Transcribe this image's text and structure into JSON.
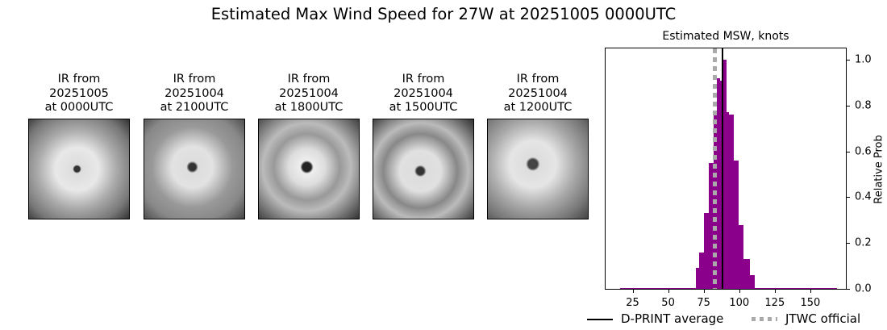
{
  "title": "Estimated Max Wind Speed for 27W at 20251005 0000UTC",
  "panels": [
    {
      "caption": "IR from\n20251005\nat 0000UTC"
    },
    {
      "caption": "IR from\n20251004\nat 2100UTC"
    },
    {
      "caption": "IR from\n20251004\nat 1800UTC"
    },
    {
      "caption": "IR from\n20251004\nat 1500UTC"
    },
    {
      "caption": "IR from\n20251004\nat 1200UTC"
    }
  ],
  "chart_data": {
    "type": "bar",
    "title": "Estimated MSW, knots",
    "xlabel": "",
    "ylabel": "Relative Prob",
    "xlim": [
      6,
      175
    ],
    "ylim": [
      0,
      1.05
    ],
    "xticks": [
      25,
      50,
      75,
      100,
      125,
      150
    ],
    "yticks": [
      "0.0",
      "0.2",
      "0.4",
      "0.6",
      "0.8",
      "1.0"
    ],
    "bins": [
      {
        "x0": 16,
        "x1": 69.6,
        "value": 0.003
      },
      {
        "x0": 69.6,
        "x1": 71.9,
        "value": 0.09
      },
      {
        "x0": 71.9,
        "x1": 75.3,
        "value": 0.16
      },
      {
        "x0": 75.3,
        "x1": 78.7,
        "value": 0.33
      },
      {
        "x0": 78.7,
        "x1": 82.1,
        "value": 0.55
      },
      {
        "x0": 82.1,
        "x1": 84.4,
        "value": 0.78
      },
      {
        "x0": 84.4,
        "x1": 86.6,
        "value": 0.92
      },
      {
        "x0": 86.6,
        "x1": 88.9,
        "value": 0.91
      },
      {
        "x0": 88.9,
        "x1": 91.2,
        "value": 1.0
      },
      {
        "x0": 91.2,
        "x1": 92.7,
        "value": 0.77
      },
      {
        "x0": 92.7,
        "x1": 96.1,
        "value": 0.76
      },
      {
        "x0": 96.1,
        "x1": 99.5,
        "value": 0.56
      },
      {
        "x0": 99.5,
        "x1": 102.9,
        "value": 0.28
      },
      {
        "x0": 102.9,
        "x1": 107.4,
        "value": 0.13
      },
      {
        "x0": 107.4,
        "x1": 110.8,
        "value": 0.06
      },
      {
        "x0": 110.8,
        "x1": 169,
        "value": 0.003
      }
    ],
    "dprint_average": 88,
    "jtwc_official": 83,
    "legend": [
      "D-PRINT average",
      "JTWC official"
    ],
    "colors": {
      "bars": "#8b008b",
      "dprint": "#000000",
      "jtwc": "#aaaaaa"
    }
  }
}
